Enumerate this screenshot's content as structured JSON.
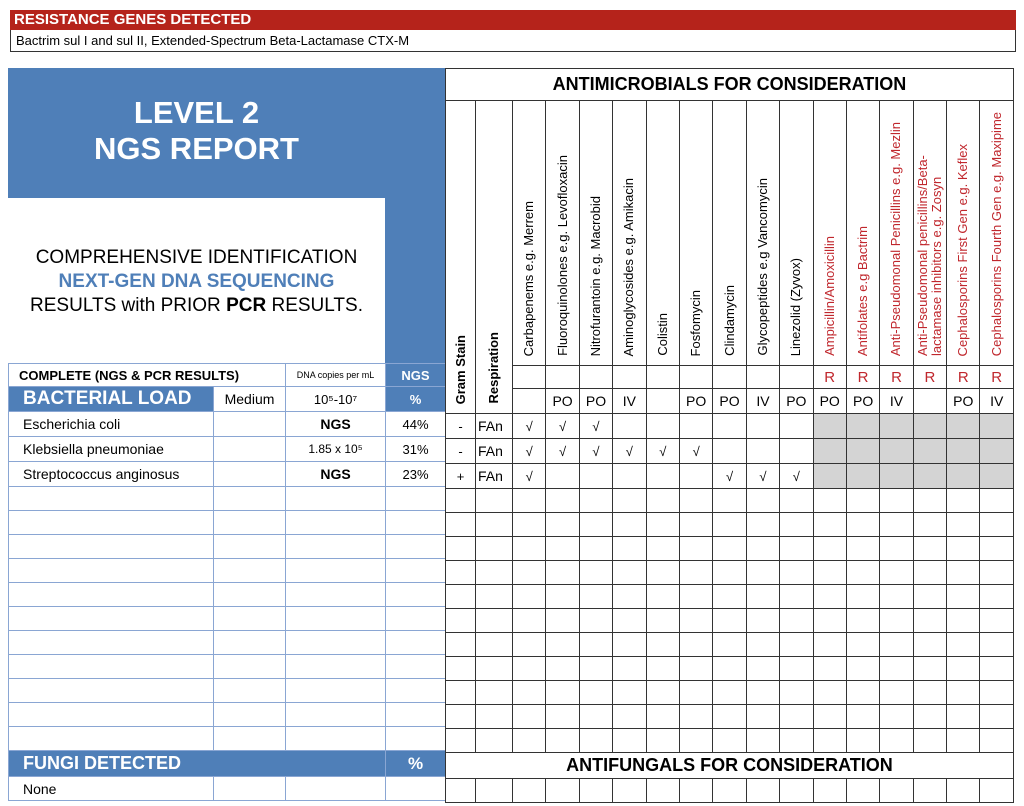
{
  "resistance": {
    "title": "RESISTANCE GENES DETECTED",
    "genes": "Bactrim sul I and sul II, Extended-Spectrum Beta-Lactamase CTX-M"
  },
  "report": {
    "title_line1": "LEVEL 2",
    "title_line2": "NGS REPORT",
    "desc_line1": "COMPREHENSIVE IDENTIFICATION",
    "desc_line2": "NEXT-GEN DNA SEQUENCING",
    "desc_line3a": "RESULTS with PRIOR ",
    "desc_line3b": "PCR",
    "desc_line3c": " RESULTS."
  },
  "left_table": {
    "complete_label": "COMPLETE  (NGS & PCR RESULTS)",
    "dna_label": "DNA copies per mL",
    "ngs_label": "NGS",
    "bacterial_load_label": "BACTERIAL LOAD",
    "load_value": "Medium",
    "load_range": "10⁵-10⁷",
    "pct_label": "%"
  },
  "antimicrobials_title": "ANTIMICROBIALS FOR CONSIDERATION",
  "gram_header": "Gram Stain",
  "resp_header": "Respiration",
  "drugs": [
    {
      "name": "Carbapenems e.g. Merrem",
      "r": "",
      "route": "",
      "resistant": false
    },
    {
      "name": "Fluoroquinolones e.g. Levofloxacin",
      "r": "",
      "route": "PO",
      "resistant": false
    },
    {
      "name": "Nitrofurantoin e.g. Macrobid",
      "r": "",
      "route": "PO",
      "resistant": false
    },
    {
      "name": "Aminoglycosides e.g. Amikacin",
      "r": "",
      "route": "IV",
      "resistant": false
    },
    {
      "name": "Colistin",
      "r": "",
      "route": "",
      "resistant": false
    },
    {
      "name": "Fosfomycin",
      "r": "",
      "route": "PO",
      "resistant": false
    },
    {
      "name": "Clindamycin",
      "r": "",
      "route": "PO",
      "resistant": false
    },
    {
      "name": "Glycopeptides e.g Vancomycin",
      "r": "",
      "route": "IV",
      "resistant": false
    },
    {
      "name": "Linezolid (Zyvox)",
      "r": "",
      "route": "PO",
      "resistant": false
    },
    {
      "name": "Ampicillin/Amoxicillin",
      "r": "R",
      "route": "PO",
      "resistant": true
    },
    {
      "name": "Antifolates e.g Bactrim",
      "r": "R",
      "route": "PO",
      "resistant": true
    },
    {
      "name": "Anti-Pseudomonal Penicillins e.g. Mezlin",
      "r": "R",
      "route": "IV",
      "resistant": true
    },
    {
      "name": "Anti-Pseudomonal penicillins/Beta-lactamase inhibitors e.g. Zosyn",
      "r": "R",
      "route": "",
      "resistant": true
    },
    {
      "name": "Cephalosporins First Gen e.g. Keflex",
      "r": "R",
      "route": "PO",
      "resistant": true
    },
    {
      "name": "Cephalosporins Fourth Gen e.g. Maxipime",
      "r": "R",
      "route": "IV",
      "resistant": true
    }
  ],
  "bacteria": [
    {
      "name": "Escherichia coli",
      "dna": "NGS",
      "pct": "44%",
      "gram": "-",
      "resp": "FAn",
      "checks": [
        1,
        1,
        1,
        0,
        0,
        0,
        0,
        0,
        0
      ]
    },
    {
      "name": "Klebsiella pneumoniae",
      "dna": "1.85 x 10⁵",
      "pct": "31%",
      "gram": "-",
      "resp": "FAn",
      "checks": [
        1,
        1,
        1,
        1,
        1,
        1,
        0,
        0,
        0
      ]
    },
    {
      "name": "Streptococcus anginosus",
      "dna": "NGS",
      "pct": "23%",
      "gram": "+",
      "resp": "FAn",
      "checks": [
        1,
        0,
        0,
        0,
        0,
        0,
        1,
        1,
        1
      ]
    }
  ],
  "check_mark": "√",
  "fungi": {
    "label": "FUNGI DETECTED",
    "pct_label": "%",
    "antifungals_title": "ANTIFUNGALS FOR CONSIDERATION",
    "items": [
      "None"
    ]
  },
  "colors": {
    "banner_red": "#b5231b",
    "header_blue": "#4f7fb8",
    "resistant_red": "#c0272d",
    "shade_gray": "#d4d4d4"
  }
}
